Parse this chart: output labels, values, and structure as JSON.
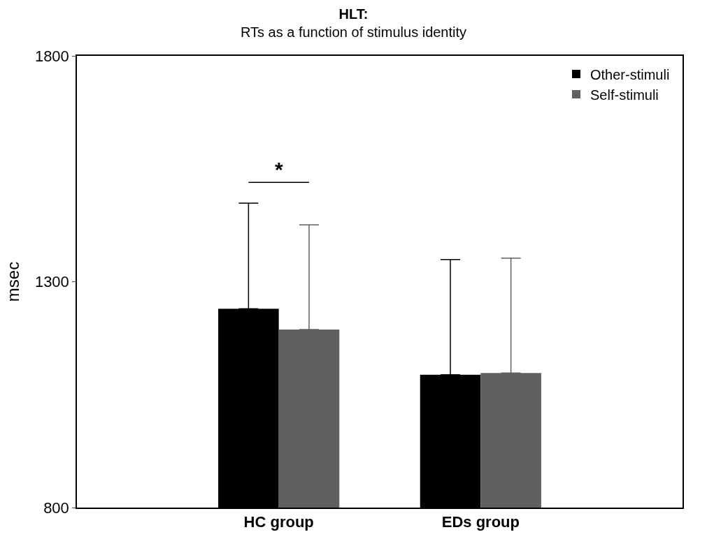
{
  "chart_data": {
    "type": "bar",
    "title": "HLT:",
    "subtitle": "RTs as a function of stimulus identity",
    "ylabel": "msec",
    "categories": [
      "HC group",
      "EDs group"
    ],
    "series": [
      {
        "name": "Other-stimuli",
        "color": "#000000",
        "values": [
          1240,
          1094
        ],
        "errors": [
          [
            1240,
            1474
          ],
          [
            1094,
            1349
          ]
        ]
      },
      {
        "name": "Self-stimuli",
        "color": "#606060",
        "values": [
          1194,
          1098
        ],
        "errors": [
          [
            1194,
            1426
          ],
          [
            1098,
            1352
          ]
        ]
      }
    ],
    "ylim": [
      800,
      1800
    ],
    "yticks": [
      800,
      1300,
      1800
    ],
    "legend": "top right",
    "annotations": [
      "*"
    ]
  }
}
